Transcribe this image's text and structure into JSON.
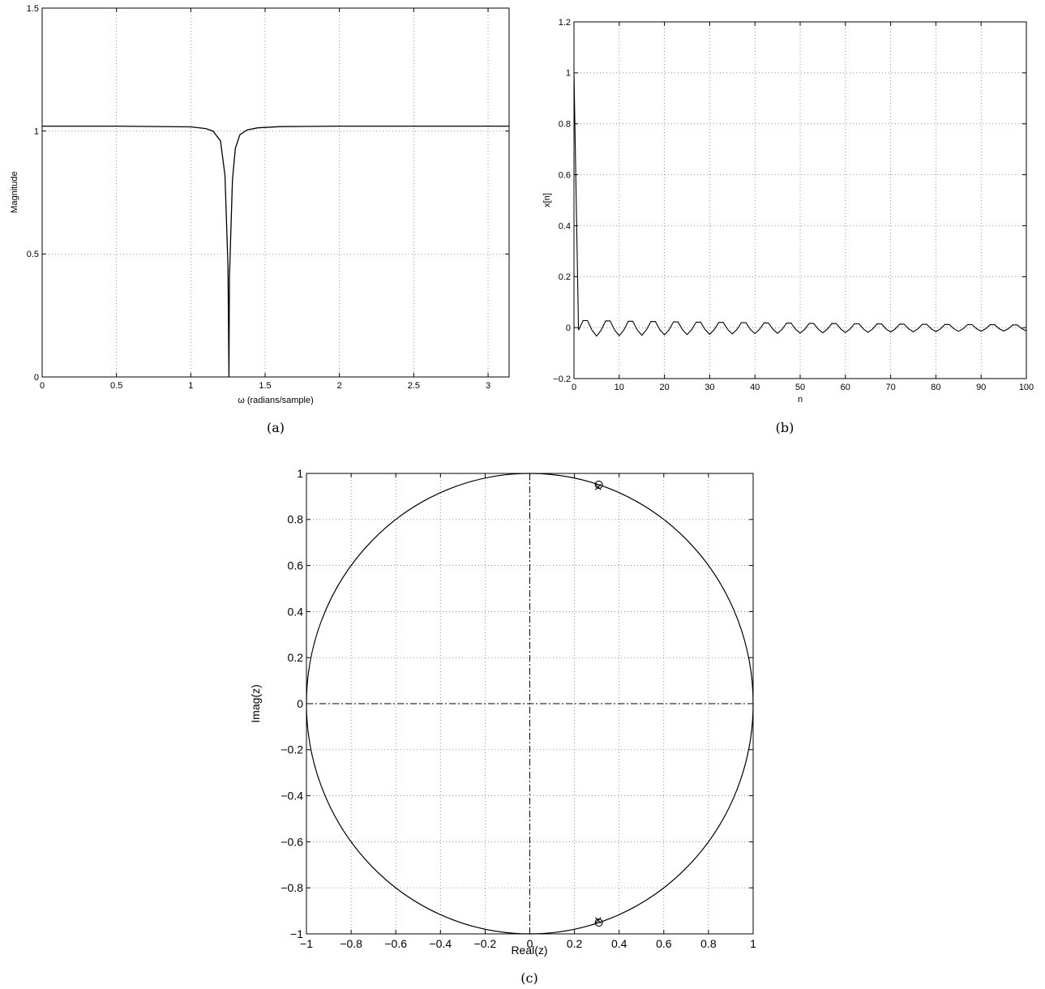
{
  "chart_data": [
    {
      "type": "line",
      "panel_label": "(a)",
      "xlabel": "ω (radians/sample)",
      "ylabel": "Magnitude",
      "xlim": [
        0,
        3.1416
      ],
      "ylim": [
        0,
        1.5
      ],
      "xticks": [
        0,
        0.5,
        1,
        1.5,
        2,
        2.5,
        3
      ],
      "xtick_labels": [
        "0",
        "0.5",
        "1",
        "1.5",
        "2",
        "2.5",
        "3"
      ],
      "yticks": [
        0,
        0.5,
        1,
        1.5
      ],
      "ytick_labels": [
        "0",
        "0.5",
        "1",
        "1.5"
      ],
      "grid": true,
      "line_color": "#000000",
      "x": [
        0,
        0.5,
        1.0,
        1.1,
        1.15,
        1.2,
        1.23,
        1.25,
        1.2566,
        1.26,
        1.28,
        1.3,
        1.33,
        1.38,
        1.45,
        1.6,
        2.0,
        2.5,
        3.1416
      ],
      "y": [
        1.02,
        1.02,
        1.017,
        1.01,
        1.0,
        0.96,
        0.82,
        0.45,
        0.0,
        0.4,
        0.8,
        0.93,
        0.985,
        1.005,
        1.013,
        1.018,
        1.02,
        1.02,
        1.02
      ]
    },
    {
      "type": "line",
      "panel_label": "(b)",
      "xlabel": "n",
      "ylabel": "x[n]",
      "xlim": [
        0,
        100
      ],
      "ylim": [
        -0.2,
        1.2
      ],
      "xticks": [
        0,
        10,
        20,
        30,
        40,
        50,
        60,
        70,
        80,
        90,
        100
      ],
      "xtick_labels": [
        "0",
        "10",
        "20",
        "30",
        "40",
        "50",
        "60",
        "70",
        "80",
        "90",
        "100"
      ],
      "yticks": [
        -0.2,
        0,
        0.2,
        0.4,
        0.6,
        0.8,
        1,
        1.2
      ],
      "ytick_labels": [
        "−0.2",
        "0",
        "0.2",
        "0.4",
        "0.6",
        "0.8",
        "1",
        "1.2"
      ],
      "grid": true,
      "line_color": "#000000",
      "signal": {
        "impulse_value": 1.0,
        "oscillation_amplitude": 0.035,
        "omega": 1.2566,
        "decay": 0.99
      }
    },
    {
      "type": "scatter",
      "panel_label": "(c)",
      "xlabel": "Real(z)",
      "ylabel": "Imag(z)",
      "xlim": [
        -1,
        1
      ],
      "ylim": [
        -1,
        1
      ],
      "xticks": [
        -1,
        -0.8,
        -0.6,
        -0.4,
        -0.2,
        0,
        0.2,
        0.4,
        0.6,
        0.8,
        1
      ],
      "xtick_labels": [
        "−1",
        "−0.8",
        "−0.6",
        "−0.4",
        "−0.2",
        "0",
        "0.2",
        "0.4",
        "0.6",
        "0.8",
        "1"
      ],
      "yticks": [
        -1,
        -0.8,
        -0.6,
        -0.4,
        -0.2,
        0,
        0.2,
        0.4,
        0.6,
        0.8,
        1
      ],
      "ytick_labels": [
        "−1",
        "−0.8",
        "−0.6",
        "−0.4",
        "−0.2",
        "0",
        "0.2",
        "0.4",
        "0.6",
        "0.8",
        "1"
      ],
      "grid": true,
      "unit_circle": true,
      "zeros": [
        {
          "x": 0.309,
          "y": 0.951
        },
        {
          "x": 0.309,
          "y": -0.951
        }
      ],
      "poles": [
        {
          "x": 0.306,
          "y": 0.941
        },
        {
          "x": 0.306,
          "y": -0.941
        }
      ]
    }
  ]
}
